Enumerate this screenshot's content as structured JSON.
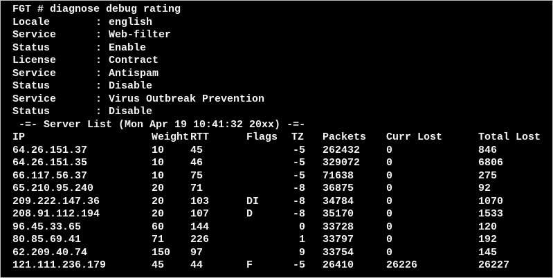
{
  "terminal": {
    "command_line": "FGT # diagnose debug rating",
    "info": [
      {
        "key": "Locale",
        "value": "english"
      },
      {
        "key": "Service",
        "value": "Web-filter"
      },
      {
        "key": "Status",
        "value": "Enable"
      },
      {
        "key": "License",
        "value": "Contract"
      },
      {
        "key": "Service",
        "value": "Antispam"
      },
      {
        "key": "Status",
        "value": "Disable"
      },
      {
        "key": "Service",
        "value": "Virus Outbreak Prevention"
      },
      {
        "key": "Status",
        "value": "Disable"
      }
    ],
    "server_list_title": " -=- Server List (Mon Apr 19 10:41:32 20xx) -=-",
    "columns": [
      "IP",
      "Weight",
      "RTT",
      "Flags",
      "TZ",
      "Packets",
      "Curr Lost",
      "Total Lost"
    ],
    "rows": [
      [
        "64.26.151.37",
        "10",
        "45",
        "",
        "-5",
        "262432",
        "0",
        "846"
      ],
      [
        "64.26.151.35",
        "10",
        "46",
        "",
        "-5",
        "329072",
        "0",
        "6806"
      ],
      [
        "66.117.56.37",
        "10",
        "75",
        "",
        "-5",
        "71638",
        "0",
        "275"
      ],
      [
        "65.210.95.240",
        "20",
        "71",
        "",
        "-8",
        "36875",
        "0",
        "92"
      ],
      [
        "209.222.147.36",
        "20",
        "103",
        "DI",
        "-8",
        "34784",
        "0",
        "1070"
      ],
      [
        "208.91.112.194",
        "20",
        "107",
        "D",
        "-8",
        "35170",
        "0",
        "1533"
      ],
      [
        "96.45.33.65",
        "60",
        "144",
        "",
        "0",
        "33728",
        "0",
        "120"
      ],
      [
        "80.85.69.41",
        "71",
        "226",
        "",
        "1",
        "33797",
        "0",
        "192"
      ],
      [
        "62.209.40.74",
        "150",
        "97",
        "",
        "9",
        "33754",
        "0",
        "145"
      ],
      [
        "121.111.236.179",
        "45",
        "44",
        "F",
        "-5",
        "26410",
        "26226",
        "26227"
      ]
    ]
  }
}
